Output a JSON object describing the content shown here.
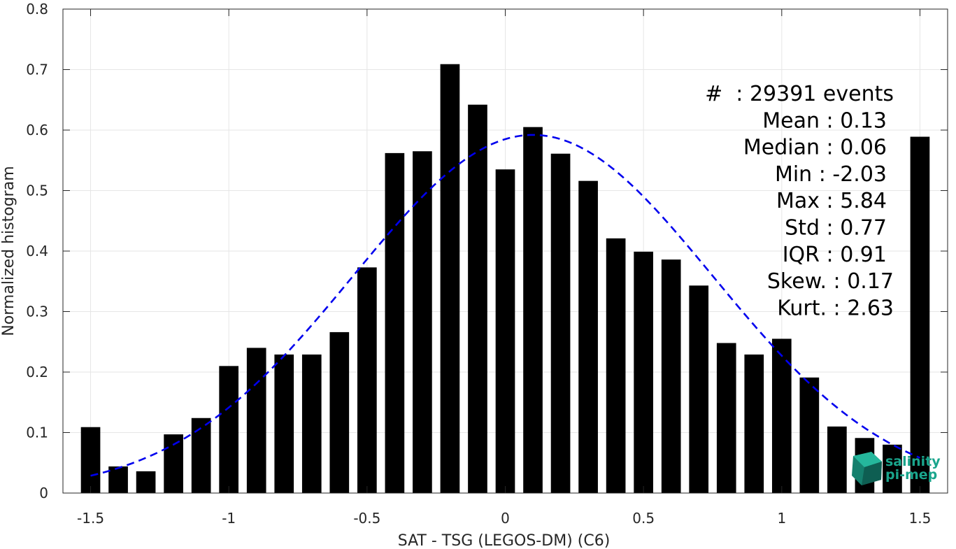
{
  "chart_data": {
    "type": "bar",
    "xlabel": "SAT - TSG (LEGOS-DM) (C6)",
    "ylabel": "Normalized histogram",
    "xlim": [
      -1.6,
      1.6
    ],
    "ylim": [
      0,
      0.8
    ],
    "grid": true,
    "xticks": [
      -1.5,
      -1,
      -0.5,
      0,
      0.5,
      1,
      1.5
    ],
    "xtick_labels": [
      "-1.5",
      "-1",
      "-0.5",
      "0",
      "0.5",
      "1",
      "1.5"
    ],
    "yticks": [
      0,
      0.1,
      0.2,
      0.3,
      0.4,
      0.5,
      0.6,
      0.7,
      0.8
    ],
    "ytick_labels": [
      "0",
      "0.1",
      "0.2",
      "0.3",
      "0.4",
      "0.5",
      "0.6",
      "0.7",
      "0.8"
    ],
    "bar_width": 0.07,
    "bars": {
      "x": [
        -1.5,
        -1.4,
        -1.3,
        -1.2,
        -1.1,
        -1.0,
        -0.9,
        -0.8,
        -0.7,
        -0.6,
        -0.5,
        -0.4,
        -0.3,
        -0.2,
        -0.1,
        0.0,
        0.1,
        0.2,
        0.3,
        0.4,
        0.5,
        0.6,
        0.7,
        0.8,
        0.9,
        1.0,
        1.1,
        1.2,
        1.3,
        1.4,
        1.5
      ],
      "values": [
        0.109,
        0.044,
        0.036,
        0.097,
        0.124,
        0.21,
        0.24,
        0.229,
        0.229,
        0.266,
        0.373,
        0.562,
        0.565,
        0.709,
        0.642,
        0.535,
        0.605,
        0.561,
        0.516,
        0.421,
        0.399,
        0.386,
        0.343,
        0.248,
        0.229,
        0.255,
        0.191,
        0.11,
        0.091,
        0.08,
        0.589
      ],
      "color": "#000000"
    },
    "fit_curve": {
      "type": "gaussian",
      "mean": 0.1,
      "sigma": 0.65,
      "peak": 0.592,
      "x_range": [
        -1.5,
        1.5
      ],
      "color": "#0000ee",
      "style": "dashed"
    },
    "annotations": [
      "#  : 29391 events",
      "Mean : 0.13",
      "Median : 0.06",
      "Min : -2.03",
      "Max : 5.84",
      "Std : 0.77",
      "IQR : 0.91",
      "Skew. : 0.17",
      "Kurt. : 2.63"
    ]
  },
  "logo": {
    "line1": "salinity",
    "line2": "pi-mep",
    "color": "#1aa58c"
  }
}
